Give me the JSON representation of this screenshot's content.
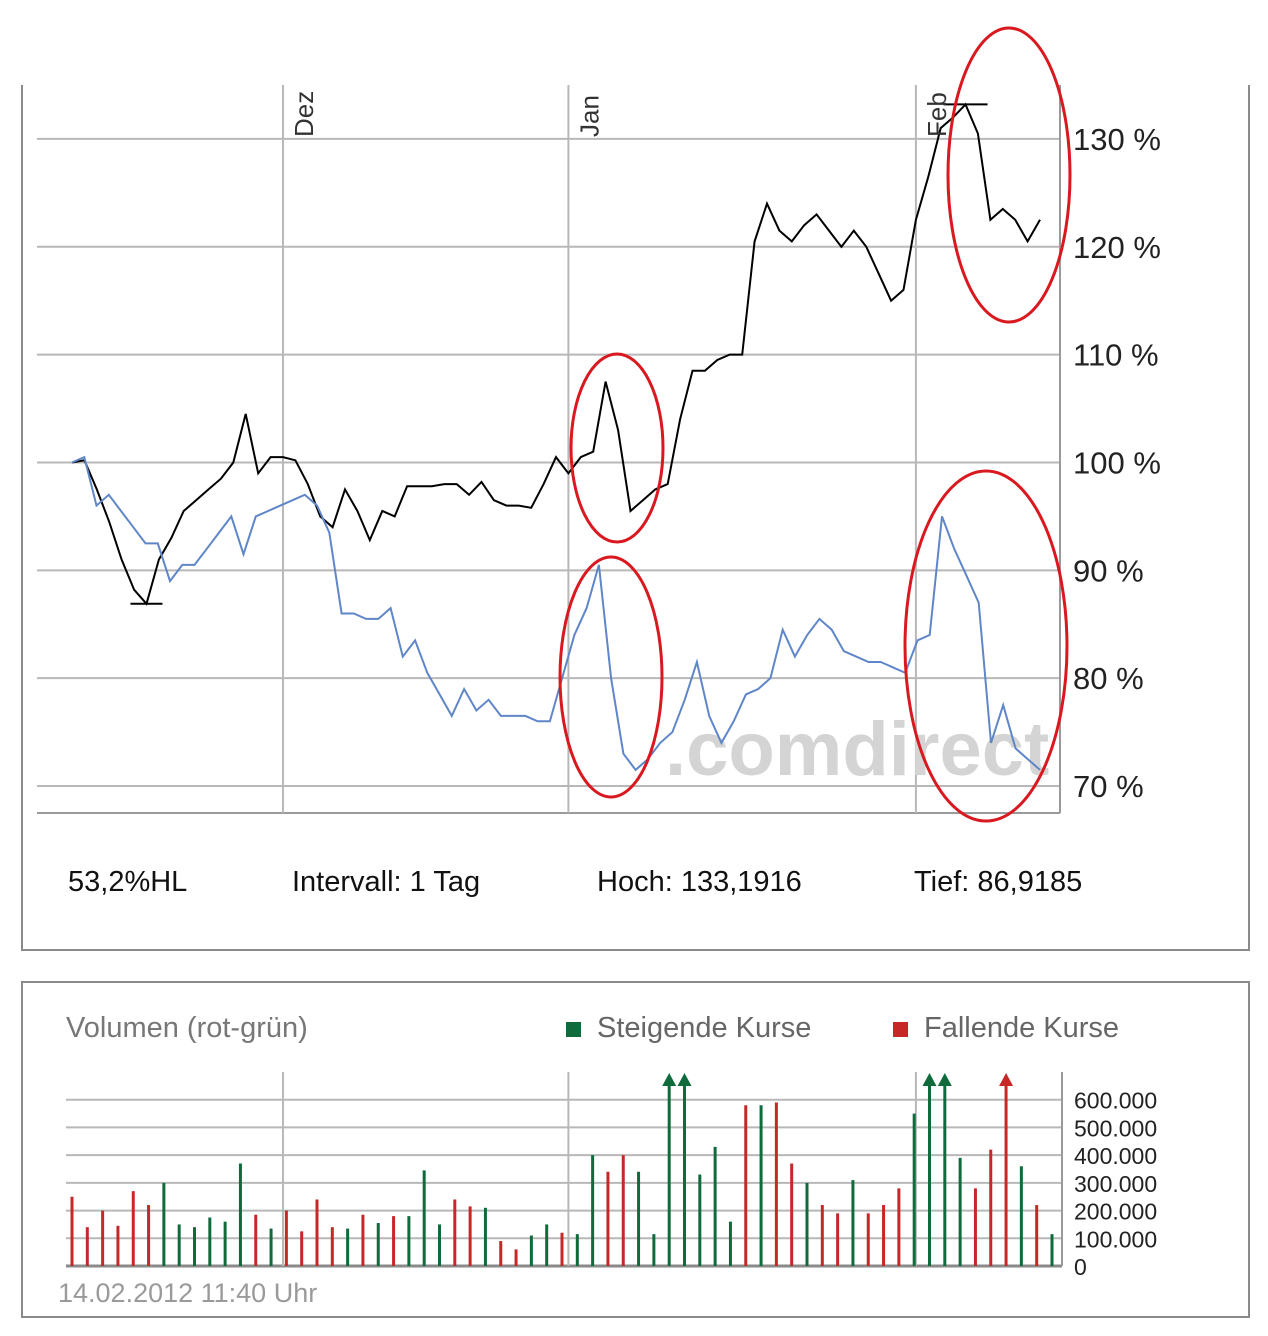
{
  "chart_data": [
    {
      "type": "line",
      "x_labels": [
        "Dez",
        "Jan",
        "Feb"
      ],
      "y_tick_labels": [
        "70 %",
        "80 %",
        "90 %",
        "100 %",
        "110 %",
        "120 %",
        "130 %"
      ],
      "y_ticks": [
        70,
        80,
        90,
        100,
        110,
        120,
        130
      ],
      "ylim": [
        67.5,
        135
      ],
      "grid": true,
      "watermark": ".comdirect",
      "series": [
        {
          "color": "#000000",
          "values": [
            100.0,
            100.2,
            97.5,
            94.5,
            91.0,
            88.2,
            86.9,
            91.0,
            93.0,
            95.5,
            96.5,
            97.5,
            98.5,
            100.0,
            104.5,
            99.0,
            100.5,
            100.5,
            100.2,
            98.0,
            95.0,
            94.0,
            97.5,
            95.5,
            92.8,
            95.5,
            95.0,
            97.8,
            97.8,
            97.8,
            98.0,
            98.0,
            97.0,
            98.2,
            96.5,
            96.0,
            96.0,
            95.8,
            98.0,
            100.5,
            99.0,
            100.5,
            101.0,
            107.5,
            103.0,
            95.5,
            96.5,
            97.5,
            98.0,
            104.0,
            108.5,
            108.5,
            109.5,
            110.0,
            110.0,
            120.5,
            124.0,
            121.5,
            120.5,
            122.0,
            123.0,
            121.5,
            120.0,
            121.5,
            120.0,
            117.5,
            115.0,
            116.0,
            122.5,
            126.5,
            131.0,
            132.0,
            133.2,
            130.5,
            122.5,
            123.5,
            122.5,
            120.5,
            122.5
          ]
        },
        {
          "color": "#5f86c8",
          "values": [
            100.0,
            100.5,
            96.0,
            97.0,
            95.5,
            94.0,
            92.5,
            92.5,
            89.0,
            90.5,
            90.5,
            92.0,
            93.5,
            95.0,
            91.5,
            95.0,
            95.5,
            96.0,
            96.5,
            97.0,
            96.0,
            93.5,
            86.0,
            86.0,
            85.5,
            85.5,
            86.5,
            82.0,
            83.5,
            80.5,
            78.5,
            76.5,
            79.0,
            77.0,
            78.0,
            76.5,
            76.5,
            76.5,
            76.0,
            76.0,
            80.0,
            84.0,
            86.5,
            90.5,
            80.0,
            73.0,
            71.5,
            72.5,
            74.0,
            75.0,
            78.0,
            81.5,
            76.5,
            74.0,
            76.0,
            78.5,
            79.0,
            80.0,
            84.5,
            82.0,
            84.0,
            85.5,
            84.5,
            82.5,
            82.0,
            81.5,
            81.5,
            81.0,
            80.5,
            83.5,
            84.0,
            95.0,
            92.0,
            89.5,
            87.0,
            74.0,
            77.5,
            73.5,
            72.5,
            71.5
          ]
        }
      ]
    },
    {
      "type": "bar",
      "title": "Volumen (rot-grün)",
      "legend": [
        {
          "name": "Steigende Kurse",
          "color": "#0f6b3c"
        },
        {
          "name": "Fallende Kurse",
          "color": "#c62828"
        }
      ],
      "y_tick_labels": [
        "600.000",
        "500.000",
        "400.000",
        "300.000",
        "200.000",
        "100.000",
        "0"
      ],
      "y_ticks": [
        600000,
        500000,
        400000,
        300000,
        200000,
        100000,
        0
      ],
      "ylim": [
        0,
        700000
      ],
      "values": [
        250000,
        140000,
        200000,
        145000,
        270000,
        220000,
        300000,
        150000,
        140000,
        175000,
        160000,
        370000,
        185000,
        135000,
        200000,
        125000,
        240000,
        140000,
        135000,
        185000,
        155000,
        180000,
        180000,
        345000,
        150000,
        240000,
        215000,
        210000,
        90000,
        60000,
        110000,
        150000,
        120000,
        115000,
        400000,
        340000,
        400000,
        340000,
        115000,
        650000,
        650000,
        330000,
        430000,
        160000,
        580000,
        580000,
        590000,
        370000,
        300000,
        220000,
        190000,
        310000,
        190000,
        220000,
        280000,
        550000,
        650000,
        650000,
        390000,
        280000,
        420000,
        650000,
        360000,
        220000,
        115000
      ],
      "colors": [
        "r",
        "r",
        "r",
        "r",
        "r",
        "r",
        "g",
        "g",
        "g",
        "g",
        "g",
        "g",
        "r",
        "g",
        "r",
        "r",
        "r",
        "r",
        "g",
        "r",
        "g",
        "r",
        "g",
        "g",
        "g",
        "r",
        "r",
        "g",
        "r",
        "r",
        "g",
        "g",
        "r",
        "g",
        "g",
        "r",
        "r",
        "g",
        "g",
        "g",
        "g",
        "g",
        "g",
        "g",
        "r",
        "g",
        "r",
        "r",
        "g",
        "r",
        "r",
        "g",
        "r",
        "r",
        "r",
        "g",
        "g",
        "g",
        "g",
        "r",
        "r",
        "r",
        "g",
        "r",
        "g"
      ],
      "timestamp": "14.02.2012 11:40 Uhr"
    }
  ],
  "stats": {
    "hl": "53,2%HL",
    "interval": "Intervall: 1 Tag",
    "high": "Hoch: 133,1916",
    "low": "Tief: 86,9185"
  }
}
